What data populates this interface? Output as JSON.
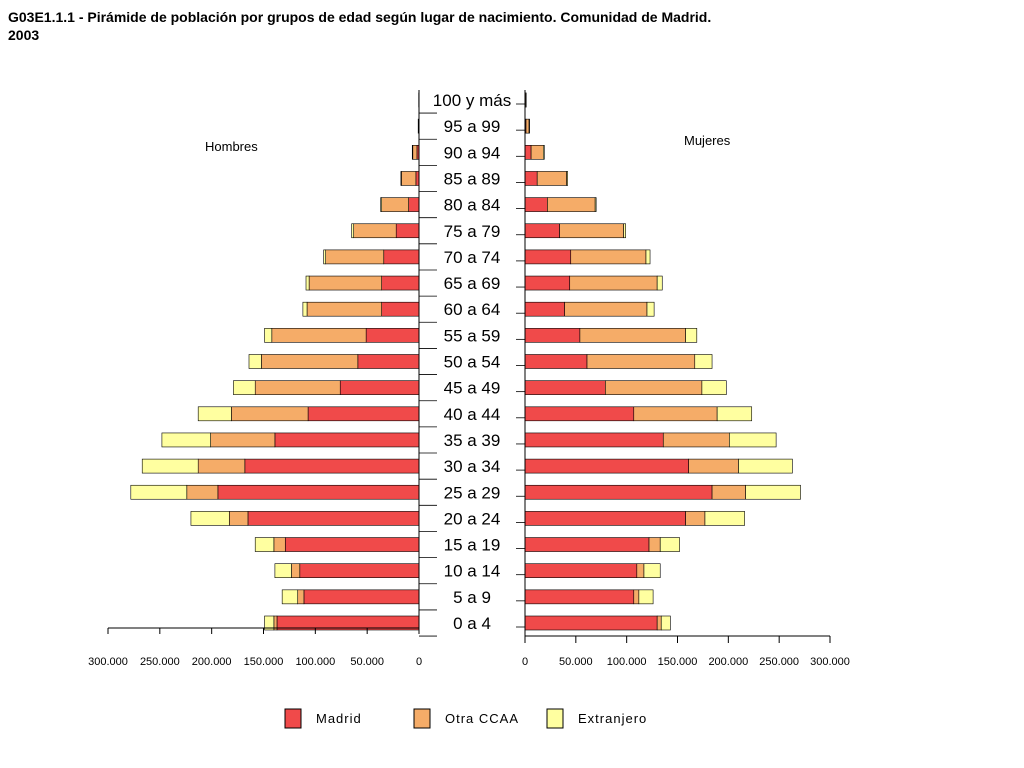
{
  "title_main": "G03E1.1.1 - Pirámide de población por grupos de edad según lugar de nacimiento. Comunidad de Madrid.",
  "title_year": "2003",
  "chart_data": {
    "type": "bar",
    "orientation": "horizontal-population-pyramid",
    "stacked": true,
    "categories": [
      "100 y más",
      "95 a 99",
      "90 a 94",
      "85 a 89",
      "80 a 84",
      "75 a 79",
      "70 a 74",
      "65 a 69",
      "60 a 64",
      "55 a 59",
      "50 a 54",
      "45 a 49",
      "40 a 44",
      "35 a 39",
      "30 a 34",
      "25 a 29",
      "20 a 24",
      "15 a 19",
      "10 a 14",
      "5 a 9",
      "0 a 4"
    ],
    "xlim": [
      0,
      300000
    ],
    "x_ticks": [
      "300.000",
      "250.000",
      "200.000",
      "150.000",
      "100.000",
      "50.000",
      "0"
    ],
    "x_ticks_right": [
      "0",
      "50.000",
      "100.000",
      "150.000",
      "200.000",
      "250.000",
      "300.000"
    ],
    "x_tick_values": [
      0,
      50000,
      100000,
      150000,
      200000,
      250000,
      300000
    ],
    "left_label": "Hombres",
    "right_label": "Mujeres",
    "series_names": [
      "Madrid",
      "Otra CCAA",
      "Extranjero"
    ],
    "colors": [
      "#f04a4a",
      "#f5ac68",
      "#ffffa0"
    ],
    "legend_position": "bottom",
    "hombres": {
      "Madrid": [
        200,
        300,
        2000,
        3000,
        10000,
        22000,
        34000,
        36000,
        36000,
        51000,
        59000,
        76000,
        107000,
        139000,
        168000,
        194000,
        165000,
        129000,
        115000,
        111000,
        137000
      ],
      "Otra CCAA": [
        100,
        500,
        4000,
        14000,
        26000,
        41000,
        56000,
        70000,
        72000,
        91000,
        93000,
        82000,
        74000,
        62000,
        45000,
        30000,
        18000,
        11000,
        8000,
        6000,
        3000
      ],
      "Extranjero": [
        0,
        0,
        500,
        500,
        1000,
        2000,
        2000,
        3000,
        4000,
        7000,
        12000,
        21000,
        32000,
        47000,
        54000,
        54000,
        37000,
        18000,
        16000,
        15000,
        9000
      ]
    },
    "mujeres": {
      "Madrid": [
        500,
        1000,
        6000,
        12000,
        22000,
        34000,
        45000,
        44000,
        39000,
        54000,
        61000,
        79000,
        107000,
        136000,
        161000,
        184000,
        158000,
        122000,
        110000,
        107000,
        130000
      ],
      "Otra CCAA": [
        600,
        3000,
        12000,
        29000,
        47000,
        63000,
        74000,
        86000,
        81000,
        104000,
        106000,
        95000,
        82000,
        65000,
        49000,
        33000,
        19000,
        11000,
        7000,
        5000,
        4000
      ],
      "Extranjero": [
        100,
        500,
        1000,
        1000,
        1000,
        2000,
        4000,
        5000,
        7000,
        11000,
        17000,
        24000,
        34000,
        46000,
        53000,
        54000,
        39000,
        19000,
        16000,
        14000,
        9000
      ]
    }
  }
}
